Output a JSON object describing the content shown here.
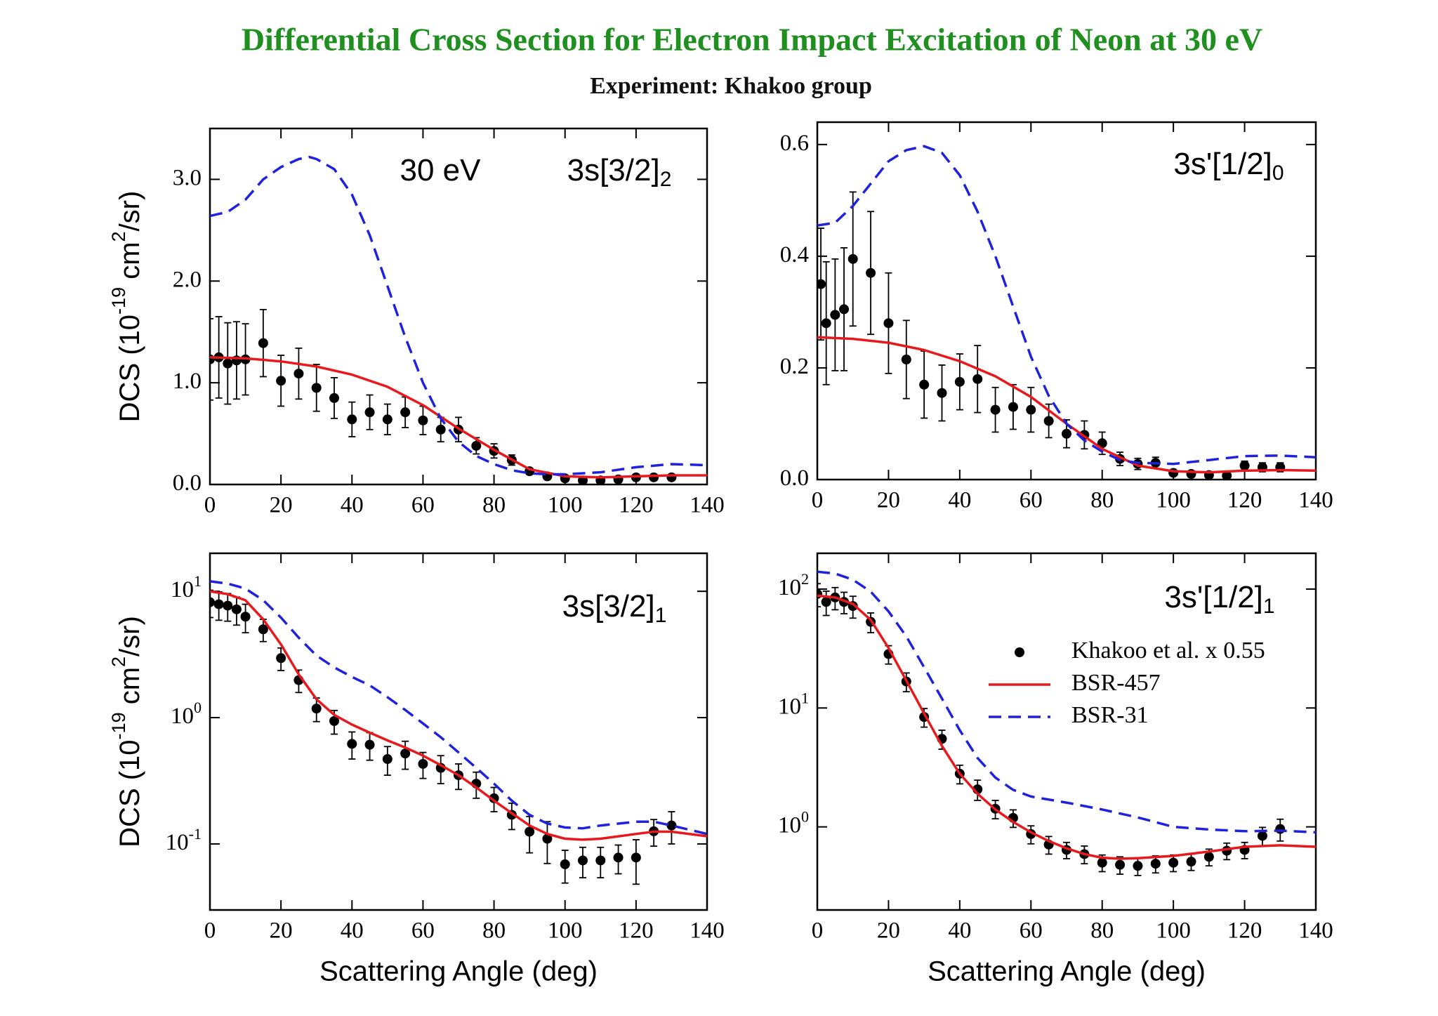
{
  "title": "Differential Cross Section for Electron Impact Excitation of Neon at 30 eV",
  "subtitle": "Experiment: Khakoo group",
  "chart_data": [
    {
      "type": "line",
      "xlim": [
        0,
        140
      ],
      "xticks": [
        0,
        20,
        40,
        60,
        80,
        100,
        120,
        140
      ],
      "ylim": [
        0,
        3.5
      ],
      "yticks": [
        {
          "value": 0,
          "label": "0.0"
        },
        {
          "value": 1,
          "label": "1.0"
        },
        {
          "value": 2,
          "label": "2.0"
        },
        {
          "value": 3,
          "label": "3.0"
        }
      ],
      "ylabel": [
        "DCS (10",
        "-19",
        " cm",
        "2",
        "/sr)"
      ],
      "annotations": [
        {
          "text": "30 eV"
        },
        {
          "text": "3s[3/2]",
          "sub": "2"
        }
      ],
      "series": [
        {
          "color": "#000000",
          "marker": "circle",
          "x": [
            0,
            2.5,
            5,
            7.5,
            10,
            15,
            20,
            25,
            30,
            35,
            40,
            45,
            50,
            55,
            60,
            65,
            70,
            75,
            80,
            85,
            90,
            95,
            100,
            105,
            110,
            115,
            120,
            125,
            130
          ],
          "values": [
            1.23,
            1.25,
            1.19,
            1.22,
            1.23,
            1.39,
            1.02,
            1.09,
            0.95,
            0.85,
            0.64,
            0.71,
            0.64,
            0.71,
            0.63,
            0.54,
            0.54,
            0.38,
            0.33,
            0.24,
            0.13,
            0.08,
            0.06,
            0.04,
            0.04,
            0.05,
            0.07,
            0.07,
            0.07
          ],
          "errors": [
            0.4,
            0.4,
            0.4,
            0.38,
            0.35,
            0.33,
            0.25,
            0.25,
            0.23,
            0.2,
            0.17,
            0.17,
            0.15,
            0.15,
            0.14,
            0.12,
            0.12,
            0.08,
            0.07,
            0.05,
            0.03,
            0.02,
            0.015,
            0.01,
            0.01,
            0.01,
            0.015,
            0.015,
            0.015
          ]
        },
        {
          "color": "#e8191c",
          "dash": "solid",
          "x": [
            0,
            10,
            20,
            30,
            40,
            50,
            60,
            70,
            80,
            90,
            100,
            110,
            120,
            130,
            140
          ],
          "values": [
            1.25,
            1.24,
            1.21,
            1.16,
            1.08,
            0.96,
            0.78,
            0.55,
            0.34,
            0.15,
            0.08,
            0.07,
            0.08,
            0.09,
            0.09
          ]
        },
        {
          "color": "#1e22dd",
          "dash": "dashed",
          "x": [
            0,
            5,
            10,
            15,
            20,
            25,
            28,
            30,
            35,
            40,
            45,
            50,
            55,
            60,
            65,
            70,
            75,
            80,
            85,
            90,
            95,
            100,
            110,
            120,
            130,
            140
          ],
          "values": [
            2.64,
            2.68,
            2.8,
            3.0,
            3.12,
            3.2,
            3.22,
            3.2,
            3.1,
            2.85,
            2.45,
            1.95,
            1.45,
            1.0,
            0.65,
            0.42,
            0.28,
            0.2,
            0.14,
            0.11,
            0.1,
            0.1,
            0.12,
            0.17,
            0.2,
            0.19
          ]
        }
      ]
    },
    {
      "type": "line",
      "xlim": [
        0,
        140
      ],
      "xticks": [
        0,
        20,
        40,
        60,
        80,
        100,
        120,
        140
      ],
      "ylim": [
        0,
        0.64
      ],
      "yticks": [
        {
          "value": 0,
          "label": "0.0"
        },
        0.2,
        0.4,
        0.6
      ],
      "annotations": [
        {
          "text": "3s'[1/2]",
          "sub": "0"
        }
      ],
      "series": [
        {
          "color": "#000000",
          "marker": "circle",
          "x": [
            1,
            2.5,
            5,
            7.5,
            10,
            15,
            20,
            25,
            30,
            35,
            40,
            45,
            50,
            55,
            60,
            65,
            70,
            75,
            80,
            85,
            90,
            95,
            100,
            105,
            110,
            115,
            120,
            125,
            130
          ],
          "values": [
            0.35,
            0.28,
            0.295,
            0.305,
            0.395,
            0.37,
            0.28,
            0.215,
            0.17,
            0.155,
            0.175,
            0.18,
            0.125,
            0.13,
            0.125,
            0.105,
            0.082,
            0.08,
            0.065,
            0.037,
            0.028,
            0.03,
            0.012,
            0.01,
            0.008,
            0.007,
            0.025,
            0.022,
            0.022
          ],
          "errors": [
            0.1,
            0.11,
            0.1,
            0.11,
            0.12,
            0.11,
            0.09,
            0.07,
            0.06,
            0.05,
            0.05,
            0.06,
            0.04,
            0.04,
            0.04,
            0.03,
            0.025,
            0.025,
            0.02,
            0.012,
            0.01,
            0.01,
            0.005,
            0.005,
            0.005,
            0.005,
            0.008,
            0.008,
            0.008
          ]
        },
        {
          "color": "#e8191c",
          "dash": "solid",
          "x": [
            0,
            10,
            20,
            30,
            40,
            50,
            60,
            70,
            80,
            90,
            100,
            110,
            120,
            130,
            140
          ],
          "values": [
            0.255,
            0.252,
            0.245,
            0.232,
            0.212,
            0.185,
            0.148,
            0.1,
            0.055,
            0.025,
            0.015,
            0.013,
            0.016,
            0.017,
            0.016
          ]
        },
        {
          "color": "#1e22dd",
          "dash": "dashed",
          "x": [
            0,
            5,
            10,
            15,
            20,
            25,
            30,
            35,
            40,
            45,
            50,
            55,
            60,
            65,
            70,
            75,
            80,
            85,
            90,
            100,
            110,
            120,
            130,
            140
          ],
          "values": [
            0.455,
            0.46,
            0.49,
            0.53,
            0.57,
            0.59,
            0.597,
            0.585,
            0.545,
            0.48,
            0.4,
            0.31,
            0.22,
            0.15,
            0.1,
            0.07,
            0.05,
            0.035,
            0.03,
            0.028,
            0.035,
            0.042,
            0.043,
            0.04
          ]
        }
      ]
    },
    {
      "type": "line",
      "xlim": [
        0,
        140
      ],
      "xticks": [
        0,
        20,
        40,
        60,
        80,
        100,
        120,
        140
      ],
      "yscale": "log",
      "ylim": [
        0.03,
        20
      ],
      "yticks": [
        {
          "value": 0.1,
          "label": "10",
          "sup": "-1"
        },
        {
          "value": 1,
          "label": "10",
          "sup": "0"
        },
        {
          "value": 10,
          "label": "10",
          "sup": "1"
        }
      ],
      "ylabel": [
        "DCS (10",
        "-19",
        " cm",
        "2",
        "/sr)"
      ],
      "xlabel": "Scattering Angle (deg)",
      "annotations": [
        {
          "text": "3s[3/2]",
          "sub": "1"
        }
      ],
      "series": [
        {
          "color": "#000000",
          "marker": "circle",
          "x": [
            0,
            2.5,
            5,
            7.5,
            10,
            15,
            20,
            25,
            30,
            35,
            40,
            45,
            50,
            55,
            60,
            65,
            70,
            75,
            80,
            85,
            90,
            95,
            100,
            105,
            110,
            115,
            120,
            125,
            130
          ],
          "values": [
            8.2,
            7.9,
            7.7,
            7.2,
            6.3,
            5.0,
            2.96,
            1.98,
            1.18,
            0.94,
            0.62,
            0.61,
            0.47,
            0.52,
            0.43,
            0.4,
            0.35,
            0.3,
            0.23,
            0.17,
            0.125,
            0.11,
            0.069,
            0.074,
            0.074,
            0.078,
            0.078,
            0.126,
            0.14
          ],
          "errors": [
            2.0,
            2.0,
            1.9,
            1.8,
            1.6,
            1.0,
            0.6,
            0.4,
            0.25,
            0.2,
            0.15,
            0.15,
            0.12,
            0.13,
            0.1,
            0.1,
            0.08,
            0.07,
            0.05,
            0.04,
            0.04,
            0.04,
            0.02,
            0.02,
            0.02,
            0.02,
            0.03,
            0.03,
            0.04
          ]
        },
        {
          "color": "#e8191c",
          "dash": "solid",
          "x": [
            0,
            5,
            10,
            15,
            20,
            25,
            30,
            35,
            40,
            45,
            50,
            55,
            60,
            65,
            70,
            75,
            80,
            85,
            90,
            95,
            100,
            105,
            110,
            120,
            125,
            130,
            140
          ],
          "values": [
            10,
            9.5,
            8.5,
            6.0,
            3.8,
            2.2,
            1.4,
            1.05,
            0.88,
            0.76,
            0.66,
            0.58,
            0.5,
            0.42,
            0.35,
            0.28,
            0.22,
            0.175,
            0.14,
            0.12,
            0.11,
            0.108,
            0.11,
            0.12,
            0.125,
            0.125,
            0.115
          ]
        },
        {
          "color": "#1e22dd",
          "dash": "dashed",
          "x": [
            0,
            5,
            10,
            15,
            20,
            25,
            30,
            35,
            40,
            45,
            50,
            55,
            60,
            65,
            70,
            75,
            80,
            85,
            90,
            95,
            100,
            105,
            110,
            120,
            125,
            130,
            140
          ],
          "values": [
            12,
            11.5,
            10.5,
            8.5,
            6.2,
            4.3,
            3.1,
            2.5,
            2.1,
            1.8,
            1.45,
            1.15,
            0.9,
            0.7,
            0.53,
            0.4,
            0.3,
            0.22,
            0.17,
            0.145,
            0.135,
            0.133,
            0.14,
            0.15,
            0.15,
            0.14,
            0.12
          ]
        }
      ]
    },
    {
      "type": "line",
      "xlim": [
        0,
        140
      ],
      "xticks": [
        0,
        20,
        40,
        60,
        80,
        100,
        120,
        140
      ],
      "yscale": "log",
      "ylim": [
        0.2,
        200
      ],
      "yticks": [
        {
          "value": 1,
          "label": "10",
          "sup": "0"
        },
        {
          "value": 10,
          "label": "10",
          "sup": "1"
        },
        {
          "value": 100,
          "label": "10",
          "sup": "2"
        }
      ],
      "xlabel": "Scattering Angle (deg)",
      "annotations": [
        {
          "text": "3s'[1/2]",
          "sub": "1"
        }
      ],
      "legend": "upper right",
      "series": [
        {
          "name": "Khakoo et al. x 0.55",
          "color": "#000000",
          "marker": "circle",
          "x": [
            0,
            2.5,
            5,
            7.5,
            10,
            15,
            20,
            25,
            30,
            35,
            40,
            45,
            50,
            55,
            60,
            65,
            70,
            75,
            80,
            85,
            90,
            95,
            100,
            105,
            110,
            115,
            120,
            125,
            130
          ],
          "values": [
            91,
            78,
            85,
            78,
            72,
            53,
            28.4,
            16.7,
            8.4,
            5.5,
            2.8,
            2.07,
            1.42,
            1.19,
            0.87,
            0.71,
            0.64,
            0.59,
            0.5,
            0.48,
            0.47,
            0.49,
            0.5,
            0.51,
            0.56,
            0.63,
            0.64,
            0.84,
            0.96
          ],
          "errors": [
            20,
            18,
            18,
            16,
            15,
            10,
            5,
            3,
            1.5,
            1,
            0.5,
            0.4,
            0.25,
            0.2,
            0.15,
            0.12,
            0.1,
            0.1,
            0.08,
            0.08,
            0.08,
            0.08,
            0.08,
            0.08,
            0.09,
            0.1,
            0.1,
            0.15,
            0.2
          ]
        },
        {
          "name": "BSR-457",
          "color": "#e8191c",
          "dash": "solid",
          "x": [
            0,
            5,
            10,
            15,
            20,
            25,
            30,
            35,
            40,
            45,
            50,
            55,
            60,
            65,
            70,
            75,
            80,
            85,
            90,
            100,
            110,
            120,
            130,
            140
          ],
          "values": [
            88,
            85,
            75,
            55,
            32,
            17,
            9,
            4.8,
            2.8,
            1.9,
            1.4,
            1.1,
            0.9,
            0.76,
            0.66,
            0.59,
            0.55,
            0.54,
            0.545,
            0.57,
            0.62,
            0.68,
            0.7,
            0.68
          ]
        },
        {
          "name": "BSR-31",
          "color": "#1e22dd",
          "dash": "dashed",
          "x": [
            0,
            5,
            10,
            15,
            20,
            25,
            30,
            35,
            40,
            45,
            50,
            55,
            60,
            70,
            80,
            90,
            100,
            110,
            120,
            130,
            140
          ],
          "values": [
            140,
            135,
            120,
            95,
            65,
            40,
            22,
            12,
            6.5,
            3.8,
            2.6,
            2.05,
            1.8,
            1.6,
            1.4,
            1.2,
            1.0,
            0.95,
            0.92,
            0.93,
            0.9
          ]
        }
      ]
    }
  ]
}
